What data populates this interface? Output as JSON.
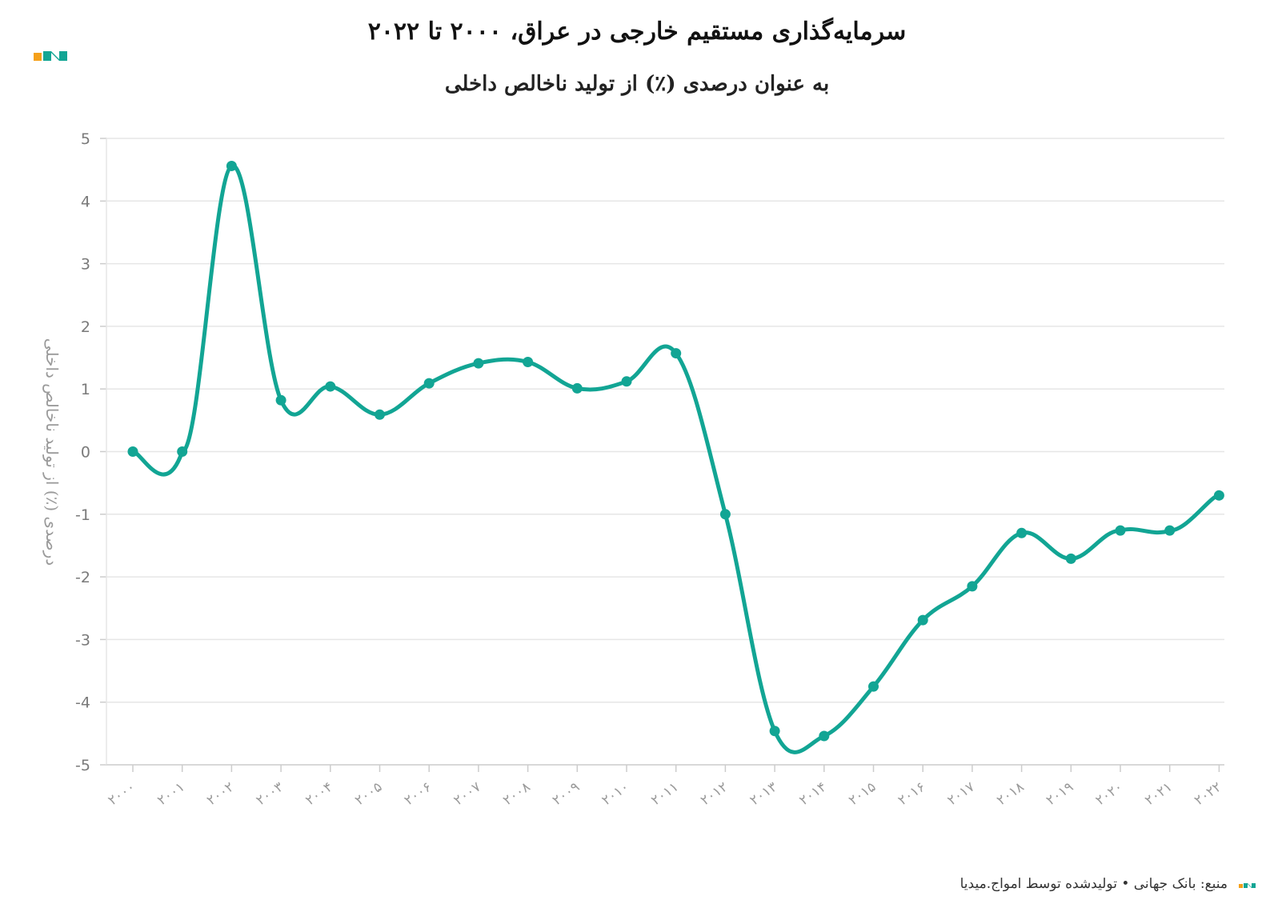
{
  "header": {
    "title": "سرمایه‌گذاری مستقیم خارجی در عراق، ۲۰۰۰ تا ۲۰۲۲",
    "subtitle": "به عنوان درصدی (٪) از تولید ناخالص داخلی"
  },
  "footer": {
    "source": "منبع: بانک جهانی • تولیدشده توسط امواج.میدیا"
  },
  "brand": {
    "logo_icon": "amwaj-logo-icon",
    "orange": "#f5a01a",
    "teal": "#12a594"
  },
  "chart_data": {
    "type": "line",
    "ylabel": "درصدی (٪) از تولید ناخالص داخلی",
    "xlabel": "",
    "ylim": [
      -5,
      5
    ],
    "yticks": [
      5,
      4,
      3,
      2,
      1,
      0,
      -1,
      -2,
      -3,
      -4,
      -5
    ],
    "grid": true,
    "line_color": "#12a594",
    "categories": [
      "۲۰۰۰",
      "۲۰۰۱",
      "۲۰۰۲",
      "۲۰۰۳",
      "۲۰۰۴",
      "۲۰۰۵",
      "۲۰۰۶",
      "۲۰۰۷",
      "۲۰۰۸",
      "۲۰۰۹",
      "۲۰۱۰",
      "۲۰۱۱",
      "۲۰۱۲",
      "۲۰۱۳",
      "۲۰۱۴",
      "۲۰۱۵",
      "۲۰۱۶",
      "۲۰۱۷",
      "۲۰۱۸",
      "۲۰۱۹",
      "۲۰۲۰",
      "۲۰۲۱",
      "۲۰۲۲"
    ],
    "values": [
      0,
      0,
      4.56,
      0.82,
      1.04,
      0.59,
      1.09,
      1.41,
      1.43,
      1.01,
      1.12,
      1.57,
      -1.0,
      -4.46,
      -4.54,
      -3.75,
      -2.69,
      -2.15,
      -1.3,
      -1.71,
      -1.26,
      -1.26,
      -0.7
    ]
  }
}
